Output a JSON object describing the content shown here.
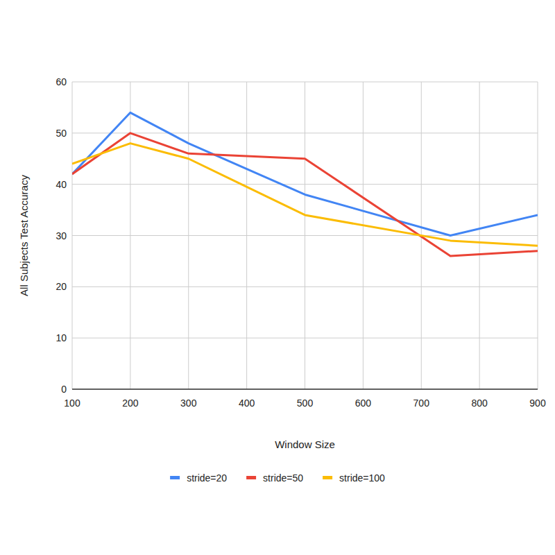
{
  "chart_data": {
    "type": "line",
    "x_label": "Window Size",
    "y_label": "All Subjects Test Accuracy",
    "x": [
      100,
      200,
      300,
      500,
      750,
      900
    ],
    "series": [
      {
        "name": "stride=20",
        "color": "#4285f4",
        "values": [
          42,
          54,
          48,
          38,
          30,
          34
        ]
      },
      {
        "name": "stride=50",
        "color": "#ea4335",
        "values": [
          42,
          50,
          46,
          45,
          26,
          27
        ]
      },
      {
        "name": "stride=100",
        "color": "#fbbc04",
        "values": [
          44,
          48,
          45,
          34,
          29,
          28
        ]
      }
    ],
    "xlim": [
      100,
      900
    ],
    "xticks": [
      100,
      200,
      300,
      400,
      500,
      600,
      700,
      800,
      900
    ],
    "ylim": [
      0,
      60
    ],
    "yticks": [
      0,
      10,
      20,
      30,
      40,
      50,
      60
    ],
    "grid": true,
    "legend": "bottom"
  }
}
